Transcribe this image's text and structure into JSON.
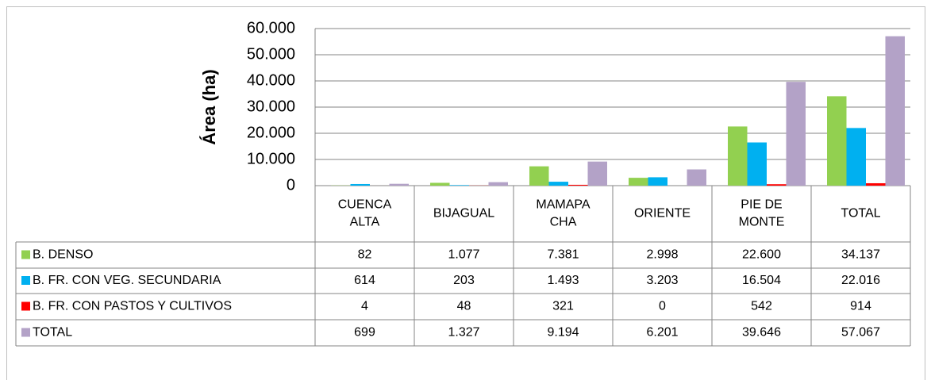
{
  "chart_data": {
    "type": "bar",
    "y_label": "Área (ha)",
    "categories": [
      [
        "CUENCA",
        "ALTA"
      ],
      [
        "BIJAGUAL"
      ],
      [
        "MAMAPA",
        "CHA"
      ],
      [
        "ORIENTE"
      ],
      [
        "PIE DE",
        "MONTE"
      ],
      [
        "TOTAL"
      ]
    ],
    "series": [
      {
        "name": "B. DENSO",
        "color": "#92d050",
        "values": [
          82,
          1077,
          7381,
          2998,
          22600,
          34137
        ],
        "value_labels": [
          "82",
          "1.077",
          "7.381",
          "2.998",
          "22.600",
          "34.137"
        ]
      },
      {
        "name": "B. FR. CON VEG. SECUNDARIA",
        "color": "#00b0f0",
        "values": [
          614,
          203,
          1493,
          3203,
          16504,
          22016
        ],
        "value_labels": [
          "614",
          "203",
          "1.493",
          "3.203",
          "16.504",
          "22.016"
        ]
      },
      {
        "name": "B. FR. CON PASTOS Y CULTIVOS",
        "color": "#ff0000",
        "values": [
          4,
          48,
          321,
          0,
          542,
          914
        ],
        "value_labels": [
          "4",
          "48",
          "321",
          "0",
          "542",
          "914"
        ]
      },
      {
        "name": "TOTAL",
        "color": "#b3a2c7",
        "values": [
          699,
          1327,
          9194,
          6201,
          39646,
          57067
        ],
        "value_labels": [
          "699",
          "1.327",
          "9.194",
          "6.201",
          "39.646",
          "57.067"
        ]
      }
    ],
    "ylim": [
      0,
      60000
    ],
    "yticks": [
      0,
      {
        "value": 10000,
        "label": "10.000"
      },
      {
        "value": 20000,
        "label": "20.000"
      },
      {
        "value": 30000,
        "label": "30.000"
      },
      {
        "value": 40000,
        "label": "40.000"
      },
      {
        "value": 50000,
        "label": "50.000"
      },
      {
        "value": 60000,
        "label": "60.000"
      }
    ],
    "grid": true
  }
}
